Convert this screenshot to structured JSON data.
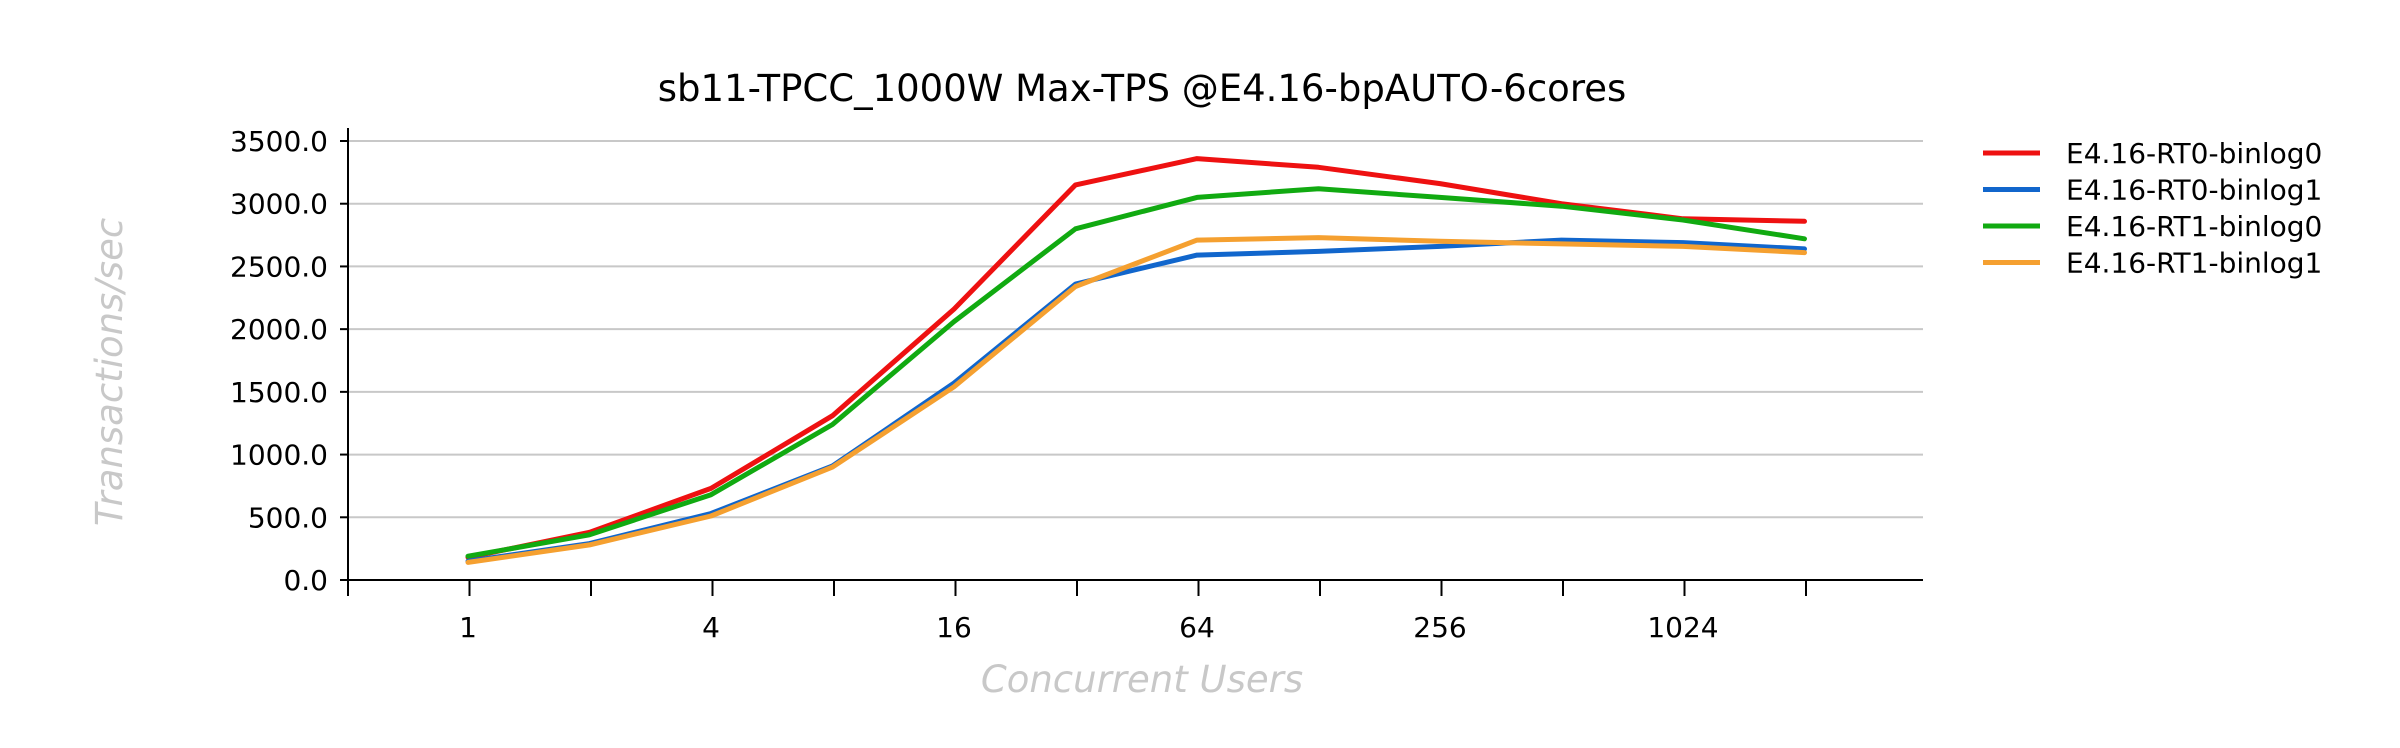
{
  "chart_data": {
    "type": "line",
    "title": "sb11-TPCC_1000W Max-TPS @E4.16-bpAUTO-6cores",
    "xlabel": "Concurrent Users",
    "ylabel": "Transactions/sec",
    "x": [
      1,
      2,
      4,
      8,
      16,
      32,
      64,
      128,
      256,
      512,
      1024,
      2048
    ],
    "x_tick_labels": [
      "1",
      "4",
      "16",
      "64",
      "256",
      "1024"
    ],
    "x_tick_values": [
      1,
      4,
      16,
      64,
      256,
      1024
    ],
    "x_scale": "log2",
    "y_tick_labels": [
      "0.0",
      "500.0",
      "1000.0",
      "1500.0",
      "2000.0",
      "2500.0",
      "3000.0",
      "3500.0"
    ],
    "ylim": [
      0,
      3600
    ],
    "grid": true,
    "legend_position": "right",
    "series": [
      {
        "name": "E4.16-RT0-binlog0",
        "color": "#ee1111",
        "values": [
          180,
          380,
          730,
          1310,
          2160,
          3150,
          3360,
          3290,
          3160,
          3000,
          2880,
          2860
        ]
      },
      {
        "name": "E4.16-RT0-binlog1",
        "color": "#1166cc",
        "values": [
          150,
          290,
          530,
          910,
          1570,
          2360,
          2590,
          2620,
          2660,
          2710,
          2690,
          2640
        ]
      },
      {
        "name": "E4.16-RT1-binlog0",
        "color": "#11aa11",
        "values": [
          190,
          360,
          680,
          1240,
          2060,
          2800,
          3050,
          3120,
          3050,
          2980,
          2870,
          2720
        ]
      },
      {
        "name": "E4.16-RT1-binlog1",
        "color": "#f5a030",
        "values": [
          140,
          280,
          510,
          900,
          1540,
          2340,
          2710,
          2730,
          2700,
          2680,
          2660,
          2610
        ]
      }
    ]
  }
}
